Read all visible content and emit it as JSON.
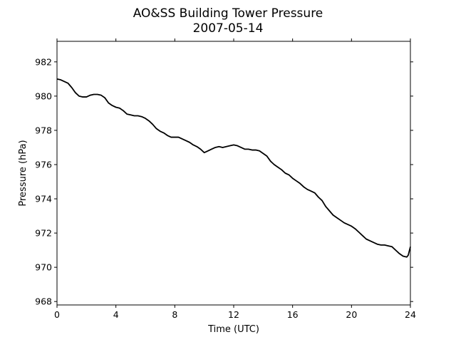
{
  "chart_data": {
    "type": "line",
    "title": "AO&SS Building Tower Pressure",
    "subtitle": "2007-05-14",
    "xlabel": "Time (UTC)",
    "ylabel": "Pressure (hPa)",
    "xlim": [
      0,
      24
    ],
    "ylim": [
      967.8,
      983.2
    ],
    "xticks": [
      0,
      4,
      8,
      12,
      16,
      20,
      24
    ],
    "yticks": [
      968,
      970,
      972,
      974,
      976,
      978,
      980,
      982
    ],
    "grid": false,
    "legend": "none",
    "line_color": "#000000",
    "series": [
      {
        "x": [
          0,
          0.25,
          0.5,
          0.75,
          1.0,
          1.25,
          1.5,
          1.75,
          2.0,
          2.25,
          2.5,
          2.75,
          3.0,
          3.25,
          3.5,
          3.75,
          4.0,
          4.25,
          4.5,
          4.75,
          5.0,
          5.25,
          5.5,
          5.75,
          6.0,
          6.25,
          6.5,
          6.75,
          7.0,
          7.25,
          7.5,
          7.75,
          8.0,
          8.25,
          8.5,
          8.75,
          9.0,
          9.25,
          9.5,
          9.75,
          10.0,
          10.25,
          10.5,
          10.75,
          11.0,
          11.25,
          11.5,
          11.75,
          12.0,
          12.25,
          12.5,
          12.75,
          13.0,
          13.25,
          13.5,
          13.75,
          14.0,
          14.25,
          14.5,
          14.75,
          15.0,
          15.25,
          15.5,
          15.75,
          16.0,
          16.25,
          16.5,
          16.75,
          17.0,
          17.25,
          17.5,
          17.75,
          18.0,
          18.25,
          18.5,
          18.75,
          19.0,
          19.25,
          19.5,
          19.75,
          20.0,
          20.25,
          20.5,
          20.75,
          21.0,
          21.25,
          21.5,
          21.75,
          22.0,
          22.25,
          22.5,
          22.75,
          23.0,
          23.25,
          23.5,
          23.75,
          23.85,
          24.0
        ],
        "y": [
          981.0,
          980.95,
          980.85,
          980.75,
          980.5,
          980.2,
          980.0,
          979.95,
          979.95,
          980.05,
          980.1,
          980.1,
          980.05,
          979.9,
          979.6,
          979.45,
          979.35,
          979.3,
          979.15,
          978.95,
          978.9,
          978.85,
          978.85,
          978.8,
          978.7,
          978.55,
          978.35,
          978.1,
          977.95,
          977.85,
          977.7,
          977.6,
          977.6,
          977.6,
          977.5,
          977.4,
          977.3,
          977.15,
          977.05,
          976.9,
          976.7,
          976.8,
          976.9,
          977.0,
          977.05,
          977.0,
          977.05,
          977.1,
          977.15,
          977.1,
          977.0,
          976.9,
          976.9,
          976.85,
          976.85,
          976.8,
          976.65,
          976.5,
          976.2,
          976.0,
          975.85,
          975.7,
          975.5,
          975.4,
          975.2,
          975.05,
          974.9,
          974.7,
          974.55,
          974.45,
          974.35,
          974.1,
          973.9,
          973.55,
          973.3,
          973.05,
          972.9,
          972.75,
          972.6,
          972.5,
          972.4,
          972.25,
          972.05,
          971.85,
          971.65,
          971.55,
          971.45,
          971.35,
          971.3,
          971.3,
          971.25,
          971.2,
          971.0,
          970.8,
          970.65,
          970.6,
          970.7,
          971.2
        ]
      }
    ]
  }
}
